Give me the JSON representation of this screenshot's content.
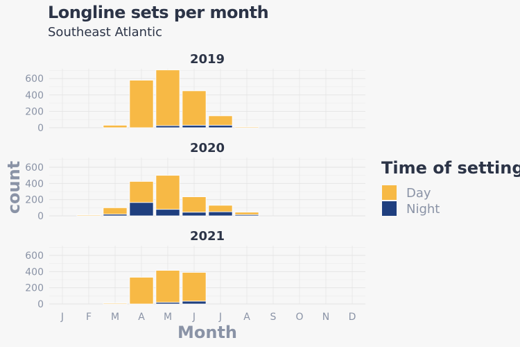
{
  "chart_data": {
    "type": "bar",
    "stacked": true,
    "faceted": true,
    "title": "Longline sets per month",
    "subtitle": "Southeast Atlantic",
    "xlabel": "Month",
    "ylabel": "count",
    "categories": [
      "J",
      "F",
      "M",
      "A",
      "M",
      "J",
      "J",
      "A",
      "S",
      "O",
      "N",
      "D"
    ],
    "yticks": [
      0,
      200,
      400,
      600
    ],
    "ylim": [
      0,
      720
    ],
    "grid": true,
    "legend": {
      "title": "Time of setting",
      "position": "right",
      "entries": [
        "Day",
        "Night"
      ]
    },
    "colors": {
      "Day": "#f7b945",
      "Night": "#1f3f7f"
    },
    "facets": [
      {
        "title": "2019",
        "series": [
          {
            "name": "Night",
            "values": [
              0,
              0,
              0,
              0,
              25,
              30,
              30,
              0,
              0,
              0,
              0,
              0
            ]
          },
          {
            "name": "Day",
            "values": [
              0,
              0,
              30,
              580,
              680,
              420,
              115,
              10,
              0,
              0,
              0,
              0
            ]
          }
        ]
      },
      {
        "title": "2020",
        "series": [
          {
            "name": "Night",
            "values": [
              0,
              0,
              20,
              165,
              80,
              45,
              50,
              15,
              0,
              0,
              0,
              0
            ]
          },
          {
            "name": "Day",
            "values": [
              0,
              10,
              80,
              260,
              420,
              190,
              80,
              30,
              0,
              0,
              0,
              0
            ]
          }
        ]
      },
      {
        "title": "2021",
        "series": [
          {
            "name": "Night",
            "values": [
              0,
              0,
              0,
              0,
              20,
              35,
              0,
              0,
              0,
              0,
              0,
              0
            ]
          },
          {
            "name": "Day",
            "values": [
              0,
              0,
              10,
              330,
              395,
              355,
              0,
              0,
              0,
              0,
              0,
              0
            ]
          }
        ]
      }
    ]
  }
}
